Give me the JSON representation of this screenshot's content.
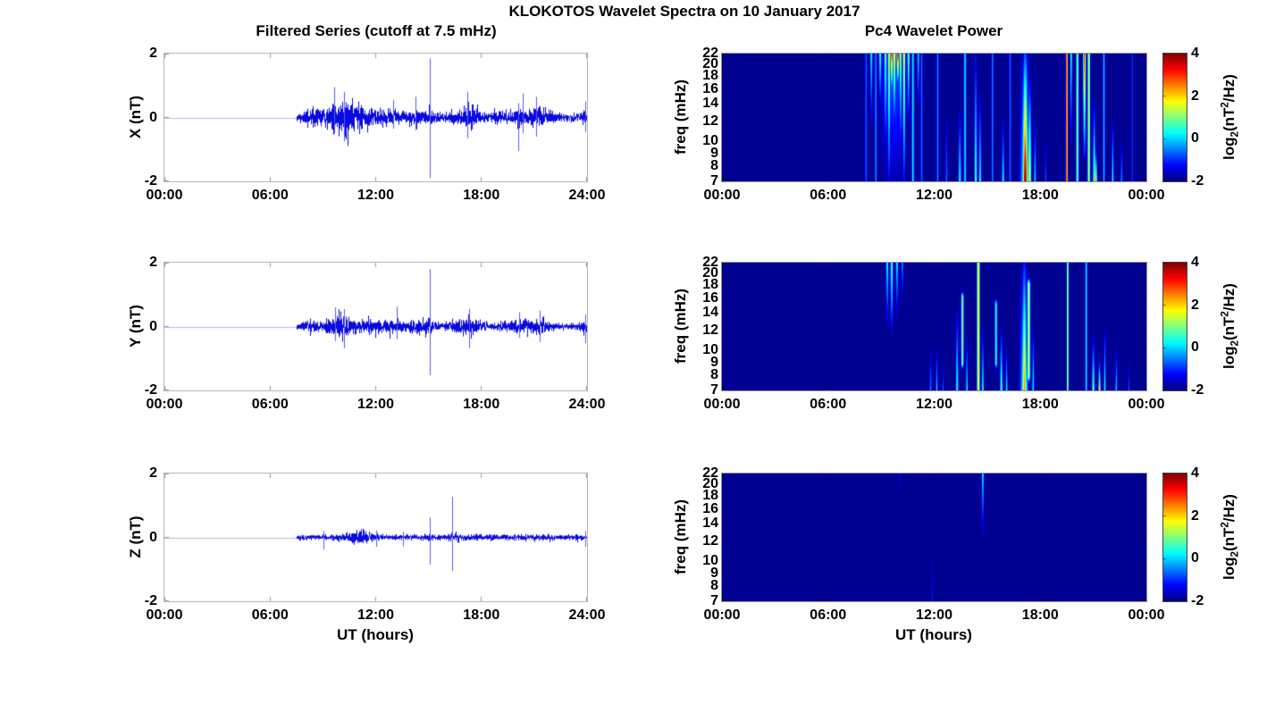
{
  "figure": {
    "title": "KLOKOTOS Wavelet Spectra on 10 January 2017",
    "left_column_title": "Filtered Series (cutoff at 7.5 mHz)",
    "right_column_title": "Pc4 Wavelet Power"
  },
  "labels": {
    "ut_hours": "UT (hours)"
  },
  "colorbar_label_parts": {
    "prefix": "log",
    "sub": "2",
    "mid": "(nT",
    "sup": "2",
    "suffix": "/Hz)"
  },
  "chart_data": [
    {
      "type": "line",
      "component": "X",
      "title": "Filtered Series (cutoff at 7.5 mHz)",
      "ylabel": "X (nT)",
      "xlabel": "UT (hours)",
      "xlim": [
        0,
        24
      ],
      "ylim": [
        -2,
        2
      ],
      "xticks": [
        "00:00",
        "06:00",
        "12:00",
        "18:00",
        "24:00"
      ],
      "yticks": [
        "2",
        "0",
        "-2"
      ],
      "line_color": "#0a0ae0",
      "spike_color": "#5a5aee",
      "quiet_line_color": "#b4baf0",
      "signal_start_hour": 7.5,
      "noise_sigma": 0.055,
      "bursts": [
        [
          8.4,
          0.35,
          1.6
        ],
        [
          9.0,
          0.3,
          1.4
        ],
        [
          9.6,
          0.25,
          2.8
        ],
        [
          10.2,
          0.35,
          2.8
        ],
        [
          10.7,
          0.4,
          1.8
        ],
        [
          11.4,
          0.6,
          1.0
        ],
        [
          12.3,
          0.5,
          0.8
        ],
        [
          13.0,
          0.3,
          1.0
        ],
        [
          14.2,
          0.4,
          1.0
        ],
        [
          15.05,
          0.15,
          1.2
        ],
        [
          16.2,
          0.8,
          0.5
        ],
        [
          17.2,
          0.35,
          2.2
        ],
        [
          17.6,
          0.3,
          1.2
        ],
        [
          19.2,
          0.6,
          0.6
        ],
        [
          20.1,
          0.2,
          1.6
        ],
        [
          21.1,
          0.3,
          1.8
        ],
        [
          21.6,
          0.4,
          0.8
        ],
        [
          23.85,
          0.08,
          1.5
        ]
      ],
      "spikes": [
        [
          9.62,
          0.95,
          -0.5
        ],
        [
          10.18,
          0.8,
          -0.75
        ],
        [
          13.0,
          0.55,
          -0.35
        ],
        [
          14.25,
          0.65,
          -0.4
        ],
        [
          15.05,
          1.85,
          -1.9
        ],
        [
          17.2,
          0.8,
          -0.65
        ],
        [
          20.1,
          0.45,
          -1.05
        ],
        [
          20.35,
          0.75,
          -0.5
        ],
        [
          21.1,
          0.65,
          -0.6
        ],
        [
          23.9,
          0.5,
          -0.45
        ]
      ]
    },
    {
      "type": "line",
      "component": "Y",
      "ylabel": "Y (nT)",
      "xlabel": "UT (hours)",
      "xlim": [
        0,
        24
      ],
      "ylim": [
        -2,
        2
      ],
      "xticks": [
        "00:00",
        "06:00",
        "12:00",
        "18:00",
        "24:00"
      ],
      "yticks": [
        "2",
        "0",
        "-2"
      ],
      "line_color": "#0a0ae0",
      "spike_color": "#5a5aee",
      "quiet_line_color": "#b4baf0",
      "signal_start_hour": 7.5,
      "noise_sigma": 0.05,
      "bursts": [
        [
          8.4,
          0.3,
          1.2
        ],
        [
          9.7,
          0.35,
          1.8
        ],
        [
          10.2,
          0.3,
          2.0
        ],
        [
          11.0,
          0.6,
          1.0
        ],
        [
          12.1,
          0.5,
          0.9
        ],
        [
          13.2,
          0.4,
          1.3
        ],
        [
          14.5,
          0.5,
          0.9
        ],
        [
          15.05,
          0.15,
          1.0
        ],
        [
          16.6,
          0.7,
          0.6
        ],
        [
          17.3,
          0.4,
          1.6
        ],
        [
          19.6,
          0.5,
          0.7
        ],
        [
          20.5,
          0.4,
          0.9
        ],
        [
          21.3,
          0.4,
          1.4
        ],
        [
          23.85,
          0.08,
          1.0
        ]
      ],
      "spikes": [
        [
          9.7,
          0.6,
          -0.45
        ],
        [
          10.2,
          0.55,
          -0.68
        ],
        [
          13.2,
          0.62,
          -0.4
        ],
        [
          15.05,
          1.8,
          -1.52
        ],
        [
          17.3,
          0.55,
          -0.68
        ],
        [
          20.15,
          0.45,
          -0.35
        ],
        [
          21.3,
          0.5,
          -0.48
        ],
        [
          23.9,
          0.38,
          -0.52
        ]
      ]
    },
    {
      "type": "line",
      "component": "Z",
      "ylabel": "Z (nT)",
      "xlabel": "UT (hours)",
      "xlim": [
        0,
        24
      ],
      "ylim": [
        -2,
        2
      ],
      "xticks": [
        "00:00",
        "06:00",
        "12:00",
        "18:00",
        "24:00"
      ],
      "yticks": [
        "2",
        "0",
        "-2"
      ],
      "line_color": "#0a0ae0",
      "spike_color": "#5a5aee",
      "quiet_line_color": "#b4baf0",
      "signal_start_hour": 7.5,
      "noise_sigma": 0.038,
      "bursts": [
        [
          10.9,
          0.7,
          0.9
        ],
        [
          11.4,
          0.4,
          1.0
        ],
        [
          15.05,
          0.2,
          0.8
        ],
        [
          16.35,
          0.2,
          0.8
        ],
        [
          17.6,
          1.0,
          0.35
        ],
        [
          21.0,
          1.5,
          0.2
        ]
      ],
      "spikes": [
        [
          9.05,
          0.2,
          -0.38
        ],
        [
          12.05,
          0.22,
          -0.3
        ],
        [
          13.55,
          0.18,
          -0.28
        ],
        [
          15.05,
          0.62,
          -0.85
        ],
        [
          16.35,
          1.27,
          -1.05
        ],
        [
          23.9,
          0.2,
          -0.3
        ]
      ]
    },
    {
      "type": "heatmap",
      "component": "X",
      "title": "Pc4 Wavelet Power",
      "ylabel": "freq (mHz)",
      "xlabel": "UT (hours)",
      "xlim": [
        0,
        24
      ],
      "ylim": [
        7,
        22
      ],
      "yscale": "log",
      "xticks": [
        "00:00",
        "06:00",
        "12:00",
        "18:00",
        "00:00"
      ],
      "yticks": [
        "22",
        "20",
        "18",
        "16",
        "14",
        "12",
        "10",
        "9",
        "8",
        "7"
      ],
      "colorbar": {
        "ticks": [
          "4",
          "2",
          "0",
          "-2"
        ],
        "range": [
          -2,
          4
        ],
        "label": "log2(nT2/Hz)",
        "colormap": "jet"
      },
      "background_power": -2,
      "streaks": [
        [
          8.15,
          0.04,
          7,
          22,
          -0.6,
          "u"
        ],
        [
          8.45,
          0.05,
          12,
          22,
          0.4,
          "d"
        ],
        [
          8.7,
          0.04,
          7,
          22,
          -0.3,
          "u"
        ],
        [
          8.95,
          0.05,
          14,
          22,
          0.8,
          "d"
        ],
        [
          9.25,
          0.05,
          10,
          22,
          1.2,
          "d"
        ],
        [
          9.45,
          0.05,
          7,
          22,
          1.8,
          "d"
        ],
        [
          9.6,
          0.05,
          16,
          22,
          3.6,
          "d"
        ],
        [
          9.7,
          0.5,
          7,
          22,
          -0.5,
          "d"
        ],
        [
          9.75,
          0.05,
          12,
          22,
          2.2,
          "d"
        ],
        [
          9.95,
          0.05,
          17,
          22,
          4.0,
          "d"
        ],
        [
          10.1,
          0.05,
          10,
          22,
          1.5,
          "d"
        ],
        [
          10.3,
          0.05,
          7,
          22,
          2.0,
          "d"
        ],
        [
          10.55,
          0.05,
          12,
          22,
          1.0,
          "d"
        ],
        [
          10.8,
          0.05,
          7,
          22,
          0.2,
          "u"
        ],
        [
          11.1,
          0.04,
          14,
          22,
          0.4,
          "d"
        ],
        [
          11.3,
          0.04,
          7,
          22,
          -0.5,
          "u"
        ],
        [
          12.2,
          0.04,
          7,
          22,
          -0.3,
          "u"
        ],
        [
          12.7,
          0.04,
          7,
          13,
          -0.4,
          "b"
        ],
        [
          13.45,
          0.05,
          7,
          13,
          0.6,
          "b"
        ],
        [
          13.75,
          0.05,
          7,
          22,
          0.2,
          "u"
        ],
        [
          14.35,
          0.05,
          7,
          22,
          1.0,
          "b"
        ],
        [
          14.6,
          0.05,
          7,
          15,
          0.5,
          "b"
        ],
        [
          15.3,
          0.04,
          7,
          22,
          -0.4,
          "u"
        ],
        [
          15.9,
          0.05,
          7,
          12,
          0.4,
          "b"
        ],
        [
          16.3,
          0.04,
          7,
          22,
          -0.5,
          "u"
        ],
        [
          17.15,
          0.09,
          7,
          22,
          4.2,
          "b"
        ],
        [
          17.15,
          0.18,
          7,
          22,
          0.8,
          "b"
        ],
        [
          17.4,
          0.06,
          7,
          17,
          2.0,
          "b"
        ],
        [
          17.7,
          0.04,
          7,
          12,
          0.3,
          "b"
        ],
        [
          18.3,
          0.03,
          7,
          10,
          -0.5,
          "b"
        ],
        [
          19.5,
          0.035,
          7,
          22,
          3.8,
          "u"
        ],
        [
          19.75,
          0.04,
          10,
          22,
          0.6,
          "d"
        ],
        [
          20.1,
          0.05,
          7,
          22,
          1.2,
          "u"
        ],
        [
          20.5,
          0.05,
          9,
          22,
          3.4,
          "d"
        ],
        [
          20.75,
          0.05,
          7,
          22,
          1.6,
          "u"
        ],
        [
          21.05,
          0.05,
          7,
          14,
          1.2,
          "b"
        ],
        [
          21.15,
          0.04,
          7,
          9,
          2.2,
          "b"
        ],
        [
          21.6,
          0.04,
          7,
          22,
          0.0,
          "u"
        ],
        [
          22.1,
          0.04,
          7,
          12,
          0.6,
          "b"
        ],
        [
          22.6,
          0.04,
          7,
          10,
          -0.2,
          "b"
        ],
        [
          23.2,
          0.03,
          7,
          22,
          -0.8,
          "u"
        ]
      ]
    },
    {
      "type": "heatmap",
      "component": "Y",
      "ylabel": "freq (mHz)",
      "xlabel": "UT (hours)",
      "xlim": [
        0,
        24
      ],
      "ylim": [
        7,
        22
      ],
      "yscale": "log",
      "xticks": [
        "00:00",
        "06:00",
        "12:00",
        "18:00",
        "00:00"
      ],
      "yticks": [
        "22",
        "20",
        "18",
        "16",
        "14",
        "12",
        "10",
        "9",
        "8",
        "7"
      ],
      "colorbar": {
        "ticks": [
          "4",
          "2",
          "0",
          "-2"
        ],
        "range": [
          -2,
          4
        ],
        "label": "log2(nT2/Hz)",
        "colormap": "jet"
      },
      "background_power": -2,
      "streaks": [
        [
          9.35,
          0.05,
          13,
          22,
          0.6,
          "d"
        ],
        [
          9.6,
          0.05,
          12,
          22,
          1.1,
          "d"
        ],
        [
          9.9,
          0.05,
          14,
          22,
          0.4,
          "d"
        ],
        [
          10.2,
          0.04,
          16,
          22,
          -0.2,
          "d"
        ],
        [
          11.8,
          0.04,
          7,
          10,
          -0.3,
          "b"
        ],
        [
          12.15,
          0.04,
          7,
          10,
          0.1,
          "b"
        ],
        [
          12.5,
          0.03,
          7,
          9,
          -0.6,
          "b"
        ],
        [
          13.3,
          0.05,
          7,
          14,
          0.7,
          "b"
        ],
        [
          13.6,
          0.05,
          9,
          16,
          1.2,
          "u"
        ],
        [
          13.85,
          0.04,
          7,
          11,
          0.4,
          "b"
        ],
        [
          14.5,
          0.055,
          7,
          22,
          2.1,
          "u"
        ],
        [
          14.75,
          0.04,
          7,
          12,
          0.6,
          "b"
        ],
        [
          15.5,
          0.05,
          9,
          15,
          0.6,
          "u"
        ],
        [
          15.8,
          0.05,
          7,
          12,
          1.0,
          "b"
        ],
        [
          16.1,
          0.04,
          7,
          10,
          0.4,
          "b"
        ],
        [
          17.1,
          0.08,
          7,
          22,
          2.6,
          "b"
        ],
        [
          17.1,
          0.15,
          7,
          20,
          0.9,
          "b"
        ],
        [
          17.35,
          0.06,
          8,
          18,
          1.6,
          "u"
        ],
        [
          17.6,
          0.04,
          7,
          12,
          0.5,
          "b"
        ],
        [
          19.55,
          0.035,
          7,
          22,
          1.6,
          "u"
        ],
        [
          20.6,
          0.04,
          7,
          22,
          0.3,
          "u"
        ],
        [
          21.0,
          0.05,
          7,
          11,
          1.1,
          "b"
        ],
        [
          21.35,
          0.04,
          7,
          9,
          1.9,
          "b"
        ],
        [
          21.65,
          0.04,
          7,
          12,
          0.6,
          "b"
        ],
        [
          22.3,
          0.04,
          7,
          10,
          0.2,
          "b"
        ],
        [
          23.0,
          0.03,
          7,
          9,
          -0.5,
          "b"
        ]
      ]
    },
    {
      "type": "heatmap",
      "component": "Z",
      "ylabel": "freq (mHz)",
      "xlabel": "UT (hours)",
      "xlim": [
        0,
        24
      ],
      "ylim": [
        7,
        22
      ],
      "yscale": "log",
      "xticks": [
        "00:00",
        "06:00",
        "12:00",
        "18:00",
        "00:00"
      ],
      "yticks": [
        "22",
        "20",
        "18",
        "16",
        "14",
        "12",
        "10",
        "9",
        "8",
        "7"
      ],
      "colorbar": {
        "ticks": [
          "4",
          "2",
          "0",
          "-2"
        ],
        "range": [
          -2,
          4
        ],
        "label": "log2(nT2/Hz)",
        "colormap": "jet"
      },
      "background_power": -2,
      "streaks": [
        [
          10.05,
          0.03,
          19,
          22,
          -1.0,
          "d"
        ],
        [
          11.9,
          0.035,
          7,
          11,
          -1.1,
          "b"
        ],
        [
          14.75,
          0.045,
          13,
          22,
          0.4,
          "d"
        ]
      ]
    }
  ]
}
